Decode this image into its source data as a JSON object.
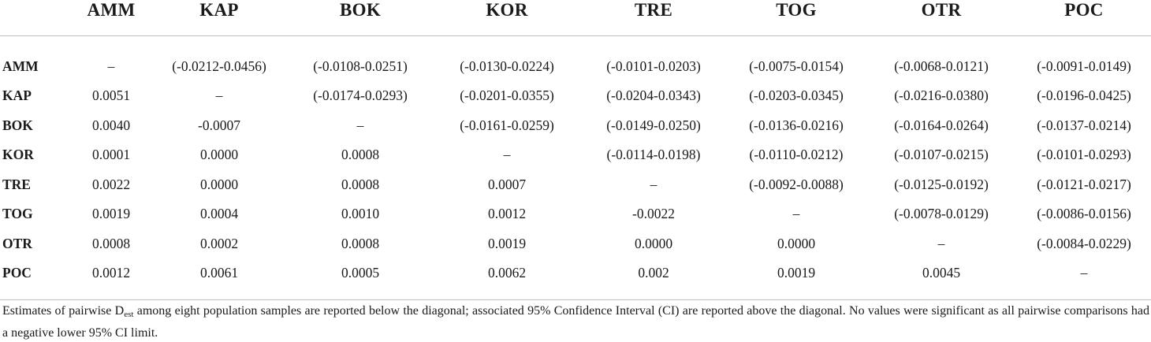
{
  "table": {
    "columns": [
      "AMM",
      "KAP",
      "BOK",
      "KOR",
      "TRE",
      "TOG",
      "OTR",
      "POC"
    ],
    "rows": [
      {
        "label": "AMM",
        "cells": [
          "–",
          "(-0.0212-0.0456)",
          "(-0.0108-0.0251)",
          "(-0.0130-0.0224)",
          "(-0.0101-0.0203)",
          "(-0.0075-0.0154)",
          "(-0.0068-0.0121)",
          "(-0.0091-0.0149)"
        ]
      },
      {
        "label": "KAP",
        "cells": [
          "0.0051",
          "–",
          "(-0.0174-0.0293)",
          "(-0.0201-0.0355)",
          "(-0.0204-0.0343)",
          "(-0.0203-0.0345)",
          "(-0.0216-0.0380)",
          "(-0.0196-0.0425)"
        ]
      },
      {
        "label": "BOK",
        "cells": [
          "0.0040",
          "-0.0007",
          "–",
          "(-0.0161-0.0259)",
          "(-0.0149-0.0250)",
          "(-0.0136-0.0216)",
          "(-0.0164-0.0264)",
          "(-0.0137-0.0214)"
        ]
      },
      {
        "label": "KOR",
        "cells": [
          "0.0001",
          "0.0000",
          "0.0008",
          "–",
          "(-0.0114-0.0198)",
          "(-0.0110-0.0212)",
          "(-0.0107-0.0215)",
          "(-0.0101-0.0293)"
        ]
      },
      {
        "label": "TRE",
        "cells": [
          "0.0022",
          "0.0000",
          "0.0008",
          "0.0007",
          "–",
          "(-0.0092-0.0088)",
          "(-0.0125-0.0192)",
          "(-0.0121-0.0217)"
        ]
      },
      {
        "label": "TOG",
        "cells": [
          "0.0019",
          "0.0004",
          "0.0010",
          "0.0012",
          "-0.0022",
          "–",
          "(-0.0078-0.0129)",
          "(-0.0086-0.0156)"
        ]
      },
      {
        "label": "OTR",
        "cells": [
          "0.0008",
          "0.0002",
          "0.0008",
          "0.0019",
          "0.0000",
          "0.0000",
          "–",
          "(-0.0084-0.0229)"
        ]
      },
      {
        "label": "POC",
        "cells": [
          "0.0012",
          "0.0061",
          "0.0005",
          "0.0062",
          "0.002",
          "0.0019",
          "0.0045",
          "–"
        ]
      }
    ]
  },
  "caption": {
    "before_sub": "Estimates of pairwise D",
    "sub": "est",
    "after_sub": " among eight population samples are reported below the diagonal; associated 95% Confidence Interval (CI) are reported above the diagonal. No values were significant as all pairwise comparisons had a negative lower 95% CI limit."
  }
}
